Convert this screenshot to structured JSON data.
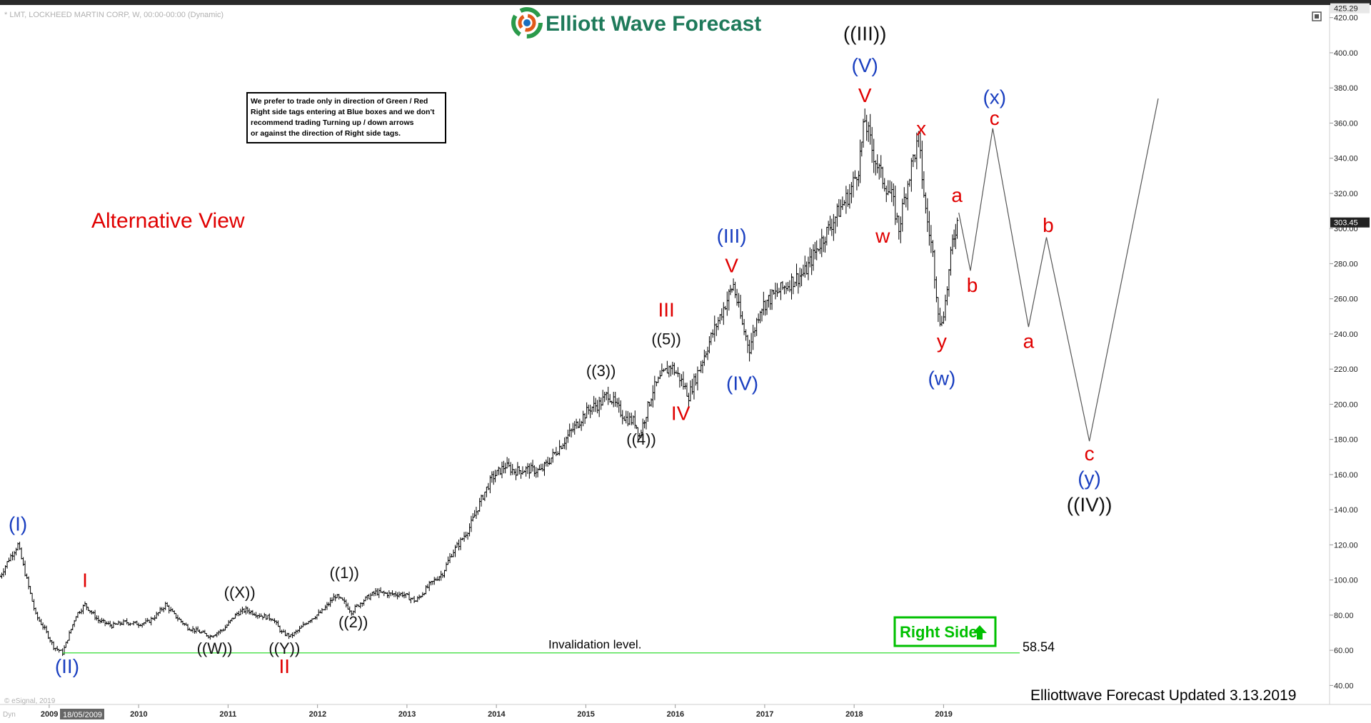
{
  "header": {
    "symbol_line": "* LMT, LOCKHEED MARTIN CORP, W, 00:00-00:00 (Dynamic)",
    "brand": "Elliott Wave Forecast",
    "copyright": "© eSignal, 2019",
    "cursor_date": "18/05/2009",
    "corner_tag": "Dyn"
  },
  "notice_lines": [
    "We prefer to trade only in direction of Green / Red",
    "Right side tags entering at Blue boxes and we don't",
    "recommend trading Turning up / down arrows",
    "or against the direction of Right side tags."
  ],
  "view_title": "Alternative View",
  "footer": "Elliottwave Forecast Updated 3.13.2019",
  "right_side_tag": "Right Side",
  "invalidation": {
    "label": "Invalidation level.",
    "value": 58.54,
    "value_text": "58.54"
  },
  "colors": {
    "red": "#e00000",
    "blue": "#1a3fc0",
    "black": "#111111",
    "green": "#00c000",
    "line": "#33dd33",
    "bars": "#000000"
  },
  "chart_data": {
    "type": "line",
    "title": "",
    "xlabel": "",
    "ylabel": "",
    "x_ticks": [
      "2009",
      "2010",
      "2011",
      "2012",
      "2013",
      "2014",
      "2015",
      "2016",
      "2017",
      "2018",
      "2019"
    ],
    "y_ticks": [
      "40.00",
      "60.00",
      "80.00",
      "100.00",
      "120.00",
      "140.00",
      "160.00",
      "180.00",
      "200.00",
      "220.00",
      "240.00",
      "260.00",
      "280.00",
      "300.00",
      "320.00",
      "340.00",
      "360.00",
      "380.00",
      "400.00",
      "420.00"
    ],
    "ylim": [
      30,
      428
    ],
    "xlim": [
      2008.45,
      2023.3
    ],
    "last_price_text": "303.45",
    "last_price": 303.45,
    "top_price_text": "425.29",
    "top_price": 425.29,
    "grid": false,
    "price_series": [
      [
        2008.45,
        102
      ],
      [
        2008.55,
        112
      ],
      [
        2008.65,
        120
      ],
      [
        2008.75,
        100
      ],
      [
        2008.85,
        80
      ],
      [
        2008.95,
        72
      ],
      [
        2009.05,
        62
      ],
      [
        2009.15,
        58.54
      ],
      [
        2009.3,
        80
      ],
      [
        2009.4,
        86
      ],
      [
        2009.55,
        77
      ],
      [
        2009.7,
        74
      ],
      [
        2009.85,
        76
      ],
      [
        2010.0,
        75
      ],
      [
        2010.1,
        76
      ],
      [
        2010.2,
        80
      ],
      [
        2010.3,
        86
      ],
      [
        2010.4,
        80
      ],
      [
        2010.55,
        73
      ],
      [
        2010.7,
        70
      ],
      [
        2010.8,
        68
      ],
      [
        2010.95,
        72
      ],
      [
        2011.1,
        81
      ],
      [
        2011.2,
        83
      ],
      [
        2011.35,
        80
      ],
      [
        2011.5,
        78
      ],
      [
        2011.6,
        70
      ],
      [
        2011.7,
        68
      ],
      [
        2011.8,
        72
      ],
      [
        2011.9,
        77
      ],
      [
        2012.05,
        82
      ],
      [
        2012.2,
        91
      ],
      [
        2012.3,
        87
      ],
      [
        2012.38,
        82
      ],
      [
        2012.5,
        88
      ],
      [
        2012.65,
        93
      ],
      [
        2012.8,
        92
      ],
      [
        2012.95,
        92
      ],
      [
        2013.1,
        88
      ],
      [
        2013.25,
        97
      ],
      [
        2013.4,
        104
      ],
      [
        2013.5,
        115
      ],
      [
        2013.6,
        122
      ],
      [
        2013.7,
        130
      ],
      [
        2013.85,
        148
      ],
      [
        2013.95,
        158
      ],
      [
        2014.1,
        165
      ],
      [
        2014.2,
        162
      ],
      [
        2014.35,
        163
      ],
      [
        2014.5,
        162
      ],
      [
        2014.65,
        172
      ],
      [
        2014.8,
        182
      ],
      [
        2014.95,
        192
      ],
      [
        2015.05,
        198
      ],
      [
        2015.15,
        200
      ],
      [
        2015.25,
        206
      ],
      [
        2015.35,
        198
      ],
      [
        2015.45,
        192
      ],
      [
        2015.55,
        190
      ],
      [
        2015.6,
        182
      ],
      [
        2015.75,
        208
      ],
      [
        2015.85,
        216
      ],
      [
        2015.95,
        222
      ],
      [
        2016.05,
        215
      ],
      [
        2016.15,
        205
      ],
      [
        2016.25,
        218
      ],
      [
        2016.4,
        238
      ],
      [
        2016.5,
        250
      ],
      [
        2016.6,
        262
      ],
      [
        2016.65,
        268
      ],
      [
        2016.75,
        245
      ],
      [
        2016.83,
        232
      ],
      [
        2016.95,
        255
      ],
      [
        2017.1,
        262
      ],
      [
        2017.3,
        270
      ],
      [
        2017.45,
        275
      ],
      [
        2017.6,
        290
      ],
      [
        2017.75,
        303
      ],
      [
        2017.85,
        312
      ],
      [
        2017.95,
        320
      ],
      [
        2018.05,
        335
      ],
      [
        2018.12,
        362
      ],
      [
        2018.2,
        345
      ],
      [
        2018.3,
        330
      ],
      [
        2018.42,
        318
      ],
      [
        2018.5,
        300
      ],
      [
        2018.58,
        322
      ],
      [
        2018.66,
        340
      ],
      [
        2018.72,
        350
      ],
      [
        2018.8,
        310
      ],
      [
        2018.88,
        285
      ],
      [
        2018.96,
        244
      ],
      [
        2019.02,
        258
      ],
      [
        2019.1,
        292
      ],
      [
        2019.17,
        308
      ]
    ],
    "projection": [
      [
        2019.17,
        309
      ],
      [
        2019.3,
        276
      ],
      [
        2019.55,
        357
      ],
      [
        2019.95,
        244
      ],
      [
        2020.15,
        295
      ],
      [
        2020.63,
        179
      ],
      [
        2021.4,
        374
      ]
    ],
    "wave_labels": [
      {
        "text": "(I)",
        "x": 2008.65,
        "y": 128,
        "color": "blue",
        "size": 28
      },
      {
        "text": "(II)",
        "x": 2009.2,
        "y": 47,
        "color": "blue",
        "size": 28
      },
      {
        "text": "I",
        "x": 2009.4,
        "y": 96,
        "color": "red",
        "size": 28
      },
      {
        "text": "((W))",
        "x": 2010.85,
        "y": 58,
        "color": "black",
        "size": 22
      },
      {
        "text": "((X))",
        "x": 2011.13,
        "y": 90,
        "color": "black",
        "size": 22
      },
      {
        "text": "((Y))",
        "x": 2011.63,
        "y": 58,
        "color": "black",
        "size": 22
      },
      {
        "text": "II",
        "x": 2011.63,
        "y": 47,
        "color": "red",
        "size": 28
      },
      {
        "text": "((1))",
        "x": 2012.3,
        "y": 101,
        "color": "black",
        "size": 22
      },
      {
        "text": "((2))",
        "x": 2012.4,
        "y": 73,
        "color": "black",
        "size": 22
      },
      {
        "text": "((3))",
        "x": 2015.17,
        "y": 216,
        "color": "black",
        "size": 22
      },
      {
        "text": "((4))",
        "x": 2015.62,
        "y": 177,
        "color": "black",
        "size": 22
      },
      {
        "text": "((5))",
        "x": 2015.9,
        "y": 234,
        "color": "black",
        "size": 22
      },
      {
        "text": "III",
        "x": 2015.9,
        "y": 250,
        "color": "red",
        "size": 28
      },
      {
        "text": "IV",
        "x": 2016.06,
        "y": 191,
        "color": "red",
        "size": 28
      },
      {
        "text": "V",
        "x": 2016.63,
        "y": 275,
        "color": "red",
        "size": 28
      },
      {
        "text": "(III)",
        "x": 2016.63,
        "y": 292,
        "color": "blue",
        "size": 28
      },
      {
        "text": "(IV)",
        "x": 2016.75,
        "y": 208,
        "color": "blue",
        "size": 28
      },
      {
        "text": "V",
        "x": 2018.12,
        "y": 372,
        "color": "red",
        "size": 28
      },
      {
        "text": "(V)",
        "x": 2018.12,
        "y": 389,
        "color": "blue",
        "size": 28
      },
      {
        "text": "((III))",
        "x": 2018.12,
        "y": 407,
        "color": "black",
        "size": 28
      },
      {
        "text": "w",
        "x": 2018.32,
        "y": 292,
        "color": "red",
        "size": 28
      },
      {
        "text": "x",
        "x": 2018.75,
        "y": 353,
        "color": "red",
        "size": 28
      },
      {
        "text": "a",
        "x": 2019.15,
        "y": 315,
        "color": "red",
        "size": 28
      },
      {
        "text": "b",
        "x": 2019.32,
        "y": 264,
        "color": "red",
        "size": 28
      },
      {
        "text": "y",
        "x": 2018.98,
        "y": 232,
        "color": "red",
        "size": 28
      },
      {
        "text": "(w)",
        "x": 2018.98,
        "y": 211,
        "color": "blue",
        "size": 28
      },
      {
        "text": "(x)",
        "x": 2019.57,
        "y": 371,
        "color": "blue",
        "size": 28
      },
      {
        "text": "c",
        "x": 2019.57,
        "y": 359,
        "color": "red",
        "size": 28
      },
      {
        "text": "a",
        "x": 2019.95,
        "y": 232,
        "color": "red",
        "size": 28
      },
      {
        "text": "b",
        "x": 2020.17,
        "y": 298,
        "color": "red",
        "size": 28
      },
      {
        "text": "c",
        "x": 2020.63,
        "y": 168,
        "color": "red",
        "size": 28
      },
      {
        "text": "(y)",
        "x": 2020.63,
        "y": 154,
        "color": "blue",
        "size": 28
      },
      {
        "text": "((IV))",
        "x": 2020.63,
        "y": 139,
        "color": "black",
        "size": 28
      }
    ]
  }
}
